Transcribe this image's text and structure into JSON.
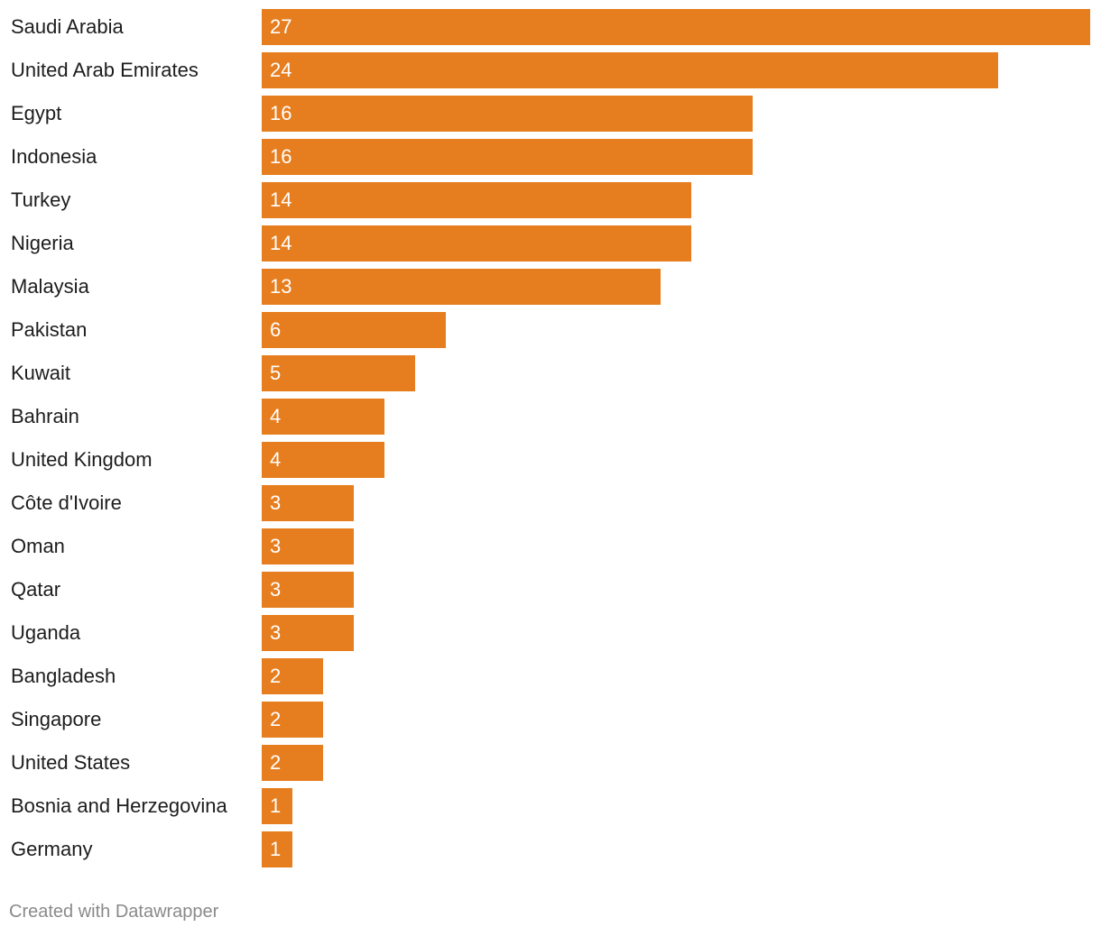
{
  "chart_data": {
    "type": "bar",
    "orientation": "horizontal",
    "categories": [
      "Saudi Arabia",
      "United Arab Emirates",
      "Egypt",
      "Indonesia",
      "Turkey",
      "Nigeria",
      "Malaysia",
      "Pakistan",
      "Kuwait",
      "Bahrain",
      "United Kingdom",
      "Côte d'Ivoire",
      "Oman",
      "Qatar",
      "Uganda",
      "Bangladesh",
      "Singapore",
      "United States",
      "Bosnia and Herzegovina",
      "Germany"
    ],
    "values": [
      27,
      24,
      16,
      16,
      14,
      14,
      13,
      6,
      5,
      4,
      4,
      3,
      3,
      3,
      3,
      2,
      2,
      2,
      1,
      1
    ],
    "xlim": [
      0,
      27
    ],
    "grid": false,
    "bar_color": "#e67e1f"
  },
  "footer": "Created with Datawrapper"
}
